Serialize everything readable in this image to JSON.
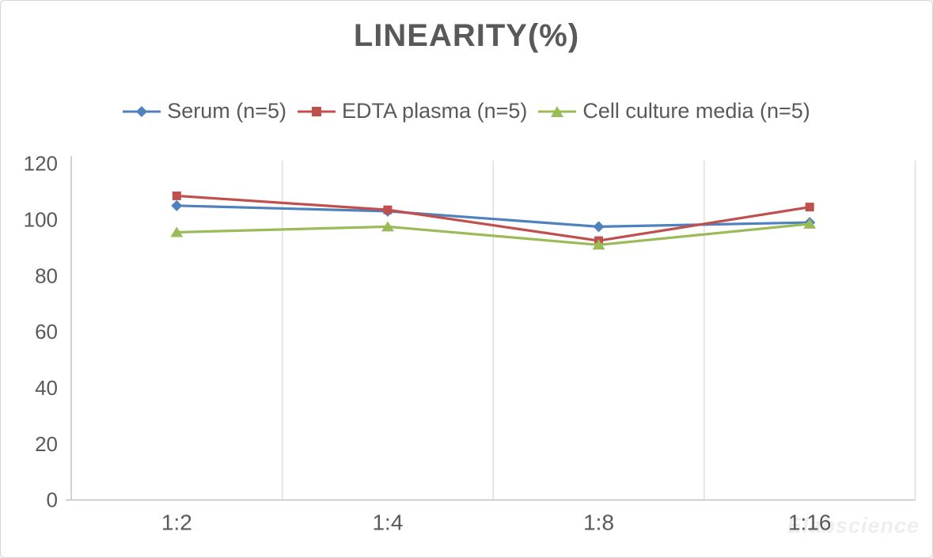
{
  "window": {
    "background": "#ffffff",
    "border_color": "#d6d6d6"
  },
  "watermark": "Elabscience",
  "chart_data": {
    "type": "line",
    "title": "LINEARITY(%)",
    "categories": [
      "1:2",
      "1:4",
      "1:8",
      "1:16"
    ],
    "series": [
      {
        "name": "Serum (n=5)",
        "marker": "diamond",
        "color": "#4F81BD",
        "values": [
          105,
          103,
          97.5,
          99
        ]
      },
      {
        "name": "EDTA plasma (n=5)",
        "marker": "square",
        "color": "#C0504D",
        "values": [
          108.5,
          103.5,
          92.5,
          104.5
        ]
      },
      {
        "name": "Cell culture media (n=5)",
        "marker": "triangle",
        "color": "#9BBB59",
        "values": [
          95.5,
          97.5,
          91,
          98.5
        ]
      }
    ],
    "ylim": [
      0,
      120
    ],
    "ytick_step": 20,
    "yticks": [
      0,
      20,
      40,
      60,
      80,
      100,
      120
    ],
    "grid": "vertical-only",
    "legend_position": "top",
    "xlabel": "",
    "ylabel": "",
    "text_color": "#595959",
    "axis_color": "#BFBFBF",
    "grid_color": "#DCDCDC"
  }
}
